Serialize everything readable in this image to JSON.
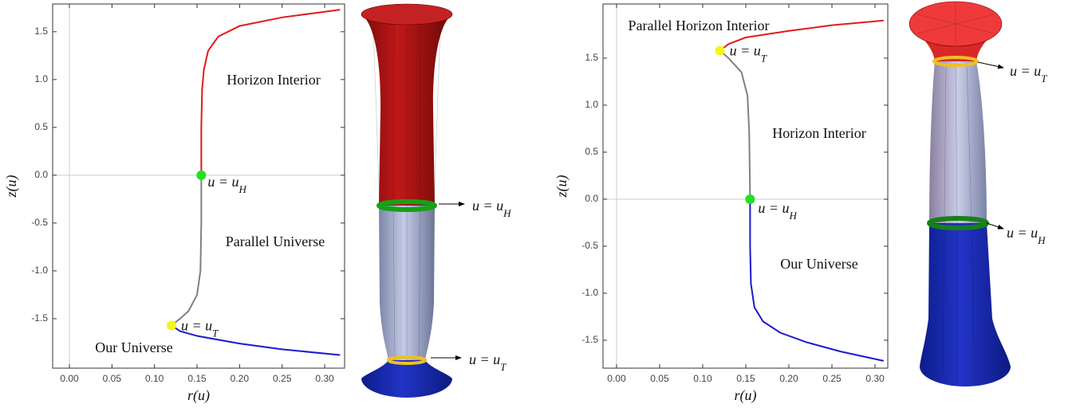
{
  "chart_data": [
    {
      "type": "line",
      "xlabel": "r(u)",
      "ylabel": "z(u)",
      "xlim": [
        -0.0197,
        0.3234
      ],
      "ylim": [
        -2.017,
        1.79
      ],
      "xticks": [
        {
          "value": 0,
          "label": "0.00"
        },
        0.05,
        {
          "value": 0.1,
          "label": "0.10"
        },
        0.15,
        {
          "value": 0.2,
          "label": "0.20"
        },
        0.25,
        {
          "value": 0.3,
          "label": "0.30"
        }
      ],
      "yticks": [
        1.5,
        {
          "value": 1,
          "label": "1.0"
        },
        0.5,
        {
          "value": 0,
          "label": "0.0"
        },
        -0.5,
        {
          "value": -1,
          "label": "-1.0"
        },
        -1.5
      ],
      "series": [
        {
          "color": "#e31a1c",
          "x": [
            0.155,
            0.155,
            0.156,
            0.158,
            0.163,
            0.175,
            0.2,
            0.25,
            0.318
          ],
          "values": [
            0,
            0.5,
            0.9,
            1.1,
            1.3,
            1.45,
            1.56,
            1.65,
            1.73
          ]
        },
        {
          "color": "#808080",
          "x": [
            0.155,
            0.155,
            0.154,
            0.15,
            0.14,
            0.13,
            0.12
          ],
          "values": [
            0,
            -0.5,
            -1.0,
            -1.25,
            -1.42,
            -1.5,
            -1.57
          ]
        },
        {
          "color": "#1a1ad0",
          "x": [
            0.12,
            0.13,
            0.15,
            0.2,
            0.25,
            0.318
          ],
          "values": [
            -1.57,
            -1.63,
            -1.68,
            -1.76,
            -1.82,
            -1.88
          ]
        }
      ],
      "points": [
        {
          "x": 0.155,
          "y": 0,
          "color": "#22e022",
          "label": "u = u",
          "sub": "H"
        },
        {
          "x": 0.12,
          "y": -1.57,
          "color": "#f5f516",
          "label": "u = u",
          "sub": "T"
        }
      ],
      "annotations": [
        "Horizon Interior",
        "Parallel Universe",
        "Our Universe"
      ],
      "surface_labels": [
        {
          "label": "u = u",
          "sub": "H"
        },
        {
          "label": "u = u",
          "sub": "T"
        }
      ]
    },
    {
      "type": "line",
      "xlabel": "r(u)",
      "ylabel": "z(u)",
      "xlim": [
        -0.0157,
        0.3148
      ],
      "ylim": [
        -1.797,
        2.076
      ],
      "xticks": [
        {
          "value": 0,
          "label": "0.00"
        },
        0.05,
        {
          "value": 0.1,
          "label": "0.10"
        },
        0.15,
        {
          "value": 0.2,
          "label": "0.20"
        },
        0.25,
        {
          "value": 0.3,
          "label": "0.30"
        }
      ],
      "yticks": [
        1.5,
        {
          "value": 1,
          "label": "1.0"
        },
        0.5,
        {
          "value": 0,
          "label": "0.0"
        },
        -0.5,
        {
          "value": -1,
          "label": "-1.0"
        },
        -1.5
      ],
      "series": [
        {
          "color": "#808080",
          "x": [
            0.12,
            0.13,
            0.145,
            0.152,
            0.154,
            0.155
          ],
          "values": [
            1.58,
            1.5,
            1.35,
            1.1,
            0.7,
            0
          ]
        },
        {
          "color": "#e31a1c",
          "x": [
            0.12,
            0.13,
            0.15,
            0.2,
            0.25,
            0.31
          ],
          "values": [
            1.58,
            1.65,
            1.72,
            1.79,
            1.85,
            1.9
          ]
        },
        {
          "color": "#1a1ad0",
          "x": [
            0.155,
            0.155,
            0.156,
            0.16,
            0.17,
            0.19,
            0.22,
            0.26,
            0.31
          ],
          "values": [
            0,
            -0.5,
            -0.9,
            -1.15,
            -1.3,
            -1.42,
            -1.52,
            -1.62,
            -1.72
          ]
        }
      ],
      "points": [
        {
          "x": 0.12,
          "y": 1.58,
          "color": "#f5f516",
          "label": "u = u",
          "sub": "T"
        },
        {
          "x": 0.155,
          "y": 0,
          "color": "#22e022",
          "label": "u = u",
          "sub": "H"
        }
      ],
      "annotations": [
        "Parallel Horizon Interior",
        "Horizon Interior",
        "Our Universe"
      ],
      "surface_labels": [
        {
          "label": "u = u",
          "sub": "T"
        },
        {
          "label": "u = u",
          "sub": "H"
        }
      ]
    }
  ]
}
